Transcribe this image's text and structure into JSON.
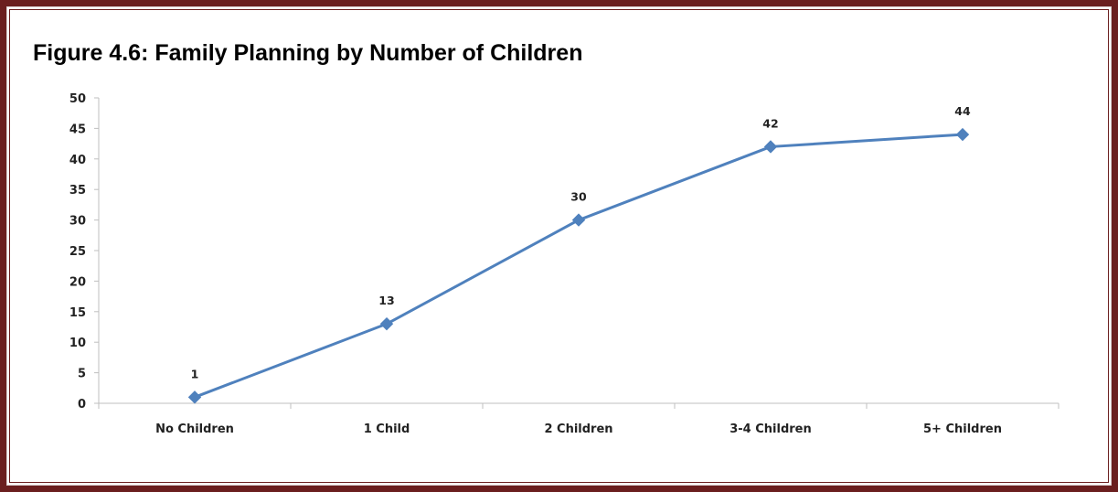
{
  "title": "Figure 4.6: Family Planning by Number of Children",
  "colors": {
    "frame": "#6b1f1f",
    "series_line": "#4f81bd",
    "axis": "#bfbfbf"
  },
  "chart_data": {
    "type": "line",
    "title": "Figure 4.6: Family Planning by Number of Children",
    "xlabel": "",
    "ylabel": "",
    "categories": [
      "No Children",
      "1 Child",
      "2 Children",
      "3-4 Children",
      "5+ Children"
    ],
    "series": [
      {
        "values": [
          1,
          13,
          30,
          42,
          44
        ]
      }
    ],
    "data_labels": [
      "1",
      "13",
      "30",
      "42",
      "44"
    ],
    "y_ticks": [
      "0",
      "5",
      "10",
      "15",
      "20",
      "25",
      "30",
      "35",
      "40",
      "45",
      "50"
    ],
    "ylim": [
      0,
      50
    ],
    "grid": false,
    "marker": "diamond",
    "legend": "none"
  }
}
